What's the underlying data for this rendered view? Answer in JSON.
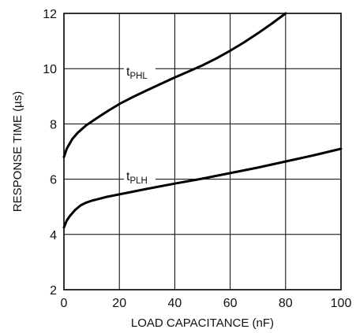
{
  "chart_data": {
    "type": "line",
    "title": "",
    "xlabel": "LOAD CAPACITANCE (nF)",
    "ylabel": "RESPONSE TIME (µs)",
    "xlim": [
      0,
      100
    ],
    "ylim": [
      2,
      12
    ],
    "x_ticks": [
      0,
      20,
      40,
      60,
      80,
      100
    ],
    "y_ticks": [
      2,
      4,
      6,
      8,
      10,
      12
    ],
    "x_tick_labels": [
      "0",
      "20",
      "40",
      "60",
      "80",
      "100"
    ],
    "y_tick_labels": [
      "2",
      "4",
      "6",
      "8",
      "10",
      "12"
    ],
    "grid": true,
    "series": [
      {
        "name": "tPHL",
        "label_main": "t",
        "label_sub": "PHL",
        "color": "#000000",
        "points": [
          [
            0,
            6.8
          ],
          [
            1,
            7.1
          ],
          [
            3,
            7.45
          ],
          [
            5,
            7.68
          ],
          [
            8,
            7.95
          ],
          [
            12,
            8.22
          ],
          [
            16,
            8.48
          ],
          [
            20,
            8.72
          ],
          [
            25,
            8.98
          ],
          [
            30,
            9.22
          ],
          [
            35,
            9.45
          ],
          [
            40,
            9.68
          ],
          [
            45,
            9.9
          ],
          [
            50,
            10.12
          ],
          [
            55,
            10.37
          ],
          [
            60,
            10.65
          ],
          [
            65,
            10.95
          ],
          [
            70,
            11.28
          ],
          [
            75,
            11.63
          ],
          [
            80,
            12.0
          ]
        ]
      },
      {
        "name": "tPLH",
        "label_main": "t",
        "label_sub": "PLH",
        "color": "#000000",
        "points": [
          [
            0,
            4.25
          ],
          [
            1,
            4.5
          ],
          [
            2,
            4.65
          ],
          [
            4,
            4.88
          ],
          [
            6,
            5.05
          ],
          [
            8,
            5.15
          ],
          [
            10,
            5.22
          ],
          [
            12,
            5.27
          ],
          [
            15,
            5.35
          ],
          [
            20,
            5.45
          ],
          [
            30,
            5.65
          ],
          [
            40,
            5.84
          ],
          [
            50,
            6.02
          ],
          [
            60,
            6.22
          ],
          [
            70,
            6.42
          ],
          [
            80,
            6.64
          ],
          [
            90,
            6.86
          ],
          [
            100,
            7.1
          ]
        ]
      }
    ]
  }
}
